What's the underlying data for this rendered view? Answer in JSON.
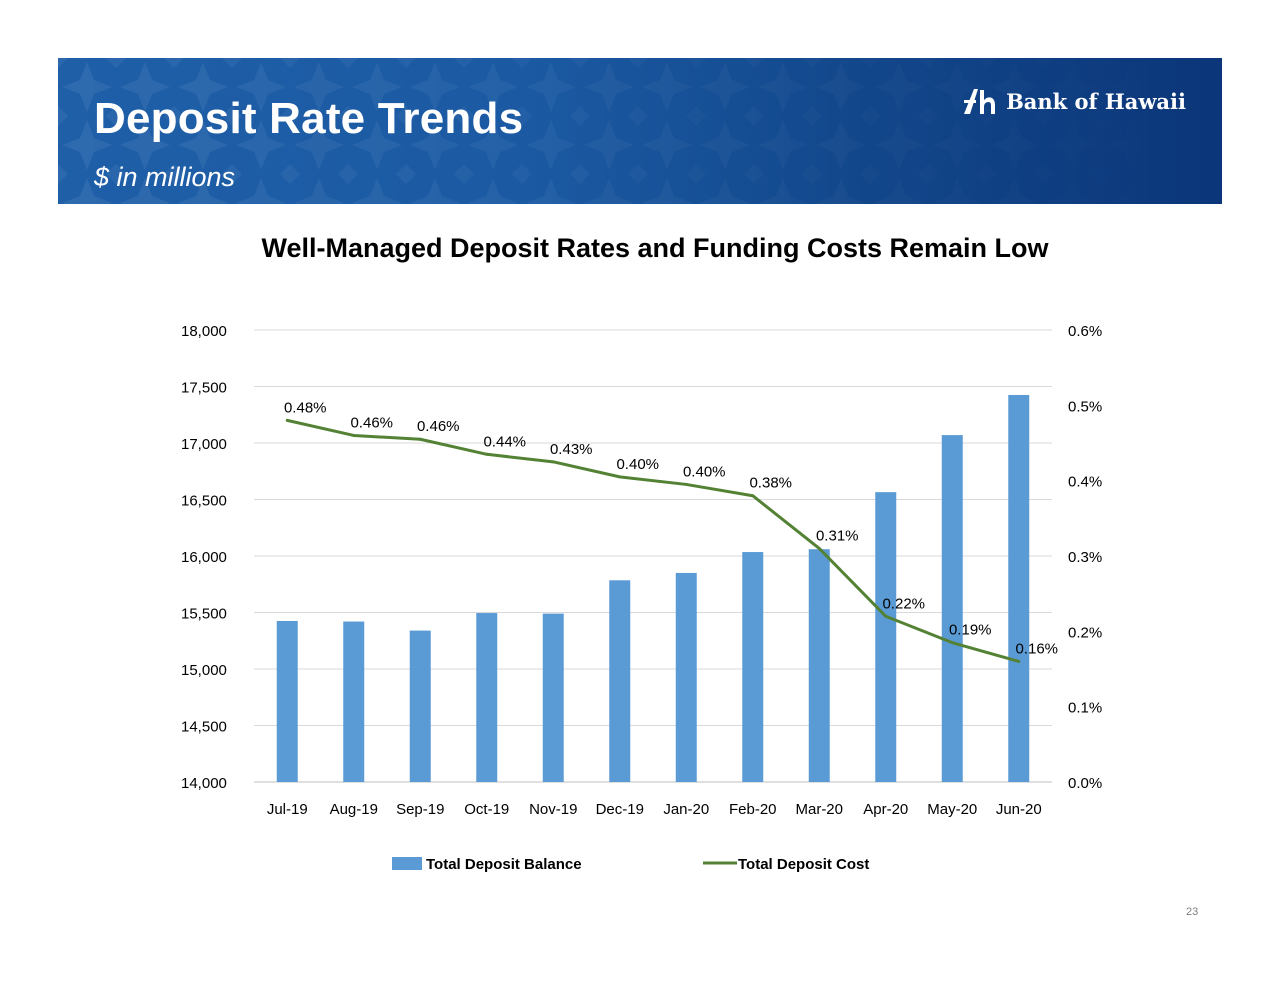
{
  "header": {
    "title": "Deposit Rate Trends",
    "subtitle": "$ in millions",
    "logo_text": "Bank of Hawaii",
    "colors": {
      "banner_start": "#1f5fa8",
      "banner_end": "#0b3679"
    }
  },
  "chart_data": {
    "type": "bar",
    "title": "Well-Managed Deposit Rates and Funding Costs Remain Low",
    "categories": [
      "Jul-19",
      "Aug-19",
      "Sep-19",
      "Oct-19",
      "Nov-19",
      "Dec-19",
      "Jan-20",
      "Feb-20",
      "Mar-20",
      "Apr-20",
      "May-20",
      "Jun-20"
    ],
    "series": [
      {
        "name": "Total Deposit Balance",
        "type": "bar",
        "axis": "left",
        "color": "#5b9bd5",
        "values": [
          15425,
          15420,
          15340,
          15495,
          15490,
          15785,
          15850,
          16035,
          16060,
          16565,
          17070,
          17425
        ]
      },
      {
        "name": "Total Deposit Cost",
        "type": "line",
        "axis": "right",
        "color": "#548235",
        "values": [
          0.48,
          0.46,
          0.455,
          0.435,
          0.425,
          0.405,
          0.395,
          0.38,
          0.31,
          0.22,
          0.185,
          0.16
        ],
        "labels": [
          "0.48%",
          "0.46%",
          "0.46%",
          "0.44%",
          "0.43%",
          "0.40%",
          "0.40%",
          "0.38%",
          "0.31%",
          "0.22%",
          "0.19%",
          "0.16%"
        ]
      }
    ],
    "y_left": {
      "ylim": [
        14000,
        18000
      ],
      "ticks": [
        14000,
        14500,
        15000,
        15500,
        16000,
        16500,
        17000,
        17500,
        18000
      ],
      "tick_labels": [
        "14,000",
        "14,500",
        "15,000",
        "15,500",
        "16,000",
        "16,500",
        "17,000",
        "17,500",
        "18,000"
      ]
    },
    "y_right": {
      "ylim": [
        0,
        0.6
      ],
      "ticks": [
        0,
        0.1,
        0.2,
        0.3,
        0.4,
        0.5,
        0.6
      ],
      "tick_labels": [
        "0.0%",
        "0.1%",
        "0.2%",
        "0.3%",
        "0.4%",
        "0.5%",
        "0.6%"
      ]
    },
    "grid": true,
    "legend_position": "bottom"
  },
  "footer": {
    "page_number": "23"
  }
}
